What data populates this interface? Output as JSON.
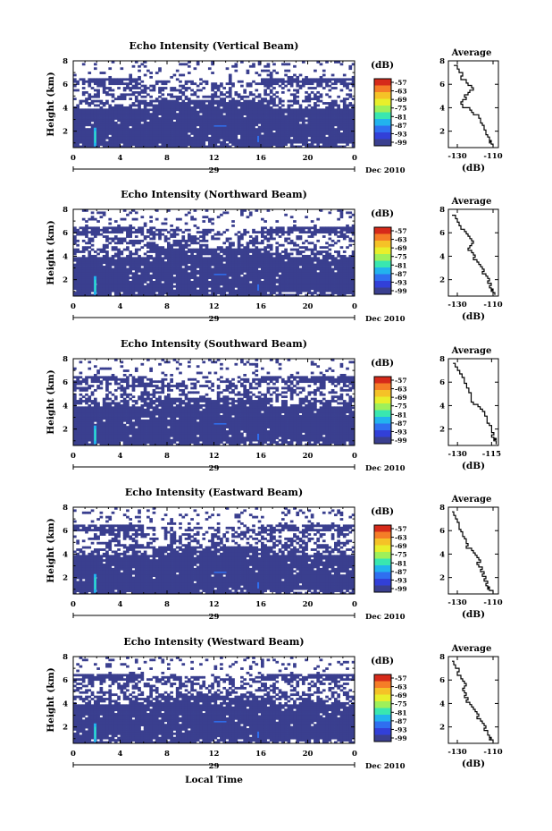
{
  "colorbar": {
    "unit_label": "(dB)",
    "ticks": [
      "-57",
      "-63",
      "-69",
      "-75",
      "-81",
      "-87",
      "-93",
      "-99"
    ],
    "colors": [
      "#d62a1a",
      "#f57d27",
      "#f5c227",
      "#e8ef2b",
      "#9ef05a",
      "#39e7b0",
      "#22b3ee",
      "#2f6ff0",
      "#3240d8",
      "#3a3f8f"
    ]
  },
  "shared": {
    "xlabel": "Local Time",
    "date_label": "29",
    "month_label": "Dec 2010",
    "ylabel": "Height (km)",
    "avg_xlabel": "(dB)",
    "avg_title": "Average",
    "bg_color": "#3a3f8f"
  },
  "chart_data": [
    {
      "type": "heatmap",
      "title": "Echo Intensity (Vertical Beam)",
      "x_ticks": [
        "0",
        "4",
        "8",
        "12",
        "16",
        "20",
        "0"
      ],
      "xlim": [
        0,
        24
      ],
      "y_ticks": [
        "8",
        "6",
        "4",
        "2"
      ],
      "ylim": [
        0.6,
        8.0
      ],
      "avg": {
        "title": "Average",
        "x_ticks": [
          "-130",
          "-110"
        ],
        "xlim": [
          -135,
          -107
        ],
        "y_ticks": [
          "8",
          "6",
          "4",
          "2"
        ],
        "ylim": [
          0.6,
          8.0
        ],
        "x": [
          -132,
          -130,
          -129,
          -127,
          -128,
          -125,
          -124,
          -122,
          -121,
          -123,
          -124,
          -126,
          -125,
          -127,
          -128,
          -127,
          -123,
          -122,
          -121,
          -118,
          -118,
          -117,
          -117,
          -116,
          -115,
          -115,
          -114,
          -114,
          -113,
          -112,
          -112,
          -111,
          -112,
          -111,
          -110
        ],
        "y": [
          7.6,
          7.3,
          7.0,
          6.7,
          6.4,
          6.1,
          5.9,
          5.7,
          5.5,
          5.3,
          5.1,
          4.9,
          4.7,
          4.5,
          4.3,
          4.0,
          3.8,
          3.6,
          3.4,
          3.3,
          3.1,
          2.9,
          2.7,
          2.5,
          2.3,
          2.1,
          1.9,
          1.7,
          1.5,
          1.3,
          1.2,
          1.1,
          1.0,
          0.9,
          0.7
        ]
      }
    },
    {
      "type": "heatmap",
      "title": "Echo Intensity (Northward Beam)",
      "x_ticks": [
        "0",
        "4",
        "8",
        "12",
        "16",
        "20",
        "0"
      ],
      "xlim": [
        0,
        24
      ],
      "y_ticks": [
        "8",
        "6",
        "4",
        "2"
      ],
      "ylim": [
        0.6,
        8.0
      ],
      "avg": {
        "title": "Average",
        "x_ticks": [
          "-130",
          "-110"
        ],
        "xlim": [
          -135,
          -107
        ],
        "y_ticks": [
          "8",
          "6",
          "4",
          "2"
        ],
        "ylim": [
          0.6,
          8.0
        ],
        "x": [
          -133,
          -131,
          -130,
          -129,
          -128,
          -126,
          -125,
          -124,
          -123,
          -122,
          -121,
          -122,
          -123,
          -124,
          -122,
          -121,
          -120,
          -121,
          -119,
          -118,
          -117,
          -116,
          -115,
          -116,
          -114,
          -113,
          -112,
          -113,
          -111,
          -112,
          -111,
          -110,
          -111,
          -110,
          -109
        ],
        "y": [
          7.5,
          7.2,
          6.9,
          6.6,
          6.3,
          6.1,
          5.9,
          5.7,
          5.5,
          5.3,
          5.1,
          4.9,
          4.7,
          4.5,
          4.3,
          4.1,
          3.9,
          3.7,
          3.5,
          3.3,
          3.1,
          2.9,
          2.7,
          2.5,
          2.3,
          2.1,
          1.9,
          1.7,
          1.5,
          1.3,
          1.2,
          1.1,
          1.0,
          0.9,
          0.7
        ]
      }
    },
    {
      "type": "heatmap",
      "title": "Echo Intensity (Southward Beam)",
      "x_ticks": [
        "0",
        "4",
        "8",
        "12",
        "16",
        "20",
        "0"
      ],
      "xlim": [
        0,
        24
      ],
      "y_ticks": [
        "8",
        "6",
        "4",
        "2"
      ],
      "ylim": [
        0.6,
        8.0
      ],
      "avg": {
        "title": "Average",
        "x_ticks": [
          "-130",
          "-115"
        ],
        "xlim": [
          -134,
          -112
        ],
        "y_ticks": [
          "8",
          "6",
          "4",
          "2"
        ],
        "ylim": [
          0.6,
          8.0
        ],
        "x": [
          -132,
          -131,
          -130,
          -129,
          -128,
          -127,
          -127,
          -126,
          -126,
          -125,
          -125,
          -124,
          -124,
          -124,
          -124,
          -123,
          -121,
          -120,
          -119,
          -118,
          -118,
          -117,
          -117,
          -117,
          -116,
          -115,
          -115,
          -115,
          -114,
          -115,
          -114,
          -113,
          -114,
          -113,
          -113
        ],
        "y": [
          7.6,
          7.3,
          7.0,
          6.7,
          6.4,
          6.1,
          5.9,
          5.7,
          5.5,
          5.3,
          5.1,
          4.9,
          4.7,
          4.5,
          4.3,
          4.1,
          3.9,
          3.7,
          3.5,
          3.3,
          3.1,
          2.9,
          2.7,
          2.5,
          2.3,
          2.1,
          1.9,
          1.7,
          1.5,
          1.3,
          1.2,
          1.1,
          1.0,
          0.9,
          0.7
        ]
      }
    },
    {
      "type": "heatmap",
      "title": "Echo Intensity (Eastward Beam)",
      "x_ticks": [
        "0",
        "4",
        "8",
        "12",
        "16",
        "20",
        "0"
      ],
      "xlim": [
        0,
        24
      ],
      "y_ticks": [
        "8",
        "6",
        "4",
        "2"
      ],
      "ylim": [
        0.6,
        8.0
      ],
      "avg": {
        "title": "Average",
        "x_ticks": [
          "-130",
          "-110"
        ],
        "xlim": [
          -135,
          -107
        ],
        "y_ticks": [
          "8",
          "6",
          "4",
          "2"
        ],
        "ylim": [
          0.6,
          8.0
        ],
        "x": [
          -133,
          -132,
          -131,
          -130,
          -129,
          -129,
          -128,
          -127,
          -127,
          -126,
          -125,
          -125,
          -124,
          -125,
          -122,
          -121,
          -120,
          -119,
          -118,
          -117,
          -119,
          -118,
          -116,
          -117,
          -115,
          -116,
          -114,
          -115,
          -113,
          -114,
          -113,
          -112,
          -113,
          -112,
          -110
        ],
        "y": [
          7.6,
          7.3,
          7.0,
          6.7,
          6.4,
          6.1,
          5.9,
          5.7,
          5.5,
          5.3,
          5.1,
          4.9,
          4.7,
          4.5,
          4.3,
          4.1,
          3.9,
          3.7,
          3.5,
          3.3,
          3.1,
          2.9,
          2.7,
          2.5,
          2.3,
          2.1,
          1.9,
          1.7,
          1.5,
          1.3,
          1.2,
          1.1,
          1.0,
          0.9,
          0.7
        ]
      }
    },
    {
      "type": "heatmap",
      "title": "Echo Intensity (Westward Beam)",
      "x_ticks": [
        "0",
        "4",
        "8",
        "12",
        "16",
        "20",
        "0"
      ],
      "xlim": [
        0,
        24
      ],
      "y_ticks": [
        "8",
        "6",
        "4",
        "2"
      ],
      "ylim": [
        0.6,
        8.0
      ],
      "avg": {
        "title": "Average",
        "x_ticks": [
          "-130",
          "-110"
        ],
        "xlim": [
          -135,
          -107
        ],
        "y_ticks": [
          "8",
          "6",
          "4",
          "2"
        ],
        "ylim": [
          0.6,
          8.0
        ],
        "x": [
          -133,
          -132,
          -131,
          -129,
          -130,
          -128,
          -127,
          -126,
          -125,
          -126,
          -127,
          -126,
          -125,
          -126,
          -124,
          -125,
          -123,
          -122,
          -121,
          -120,
          -119,
          -118,
          -119,
          -117,
          -116,
          -115,
          -114,
          -115,
          -113,
          -113,
          -112,
          -112,
          -111,
          -112,
          -110
        ],
        "y": [
          7.6,
          7.3,
          7.0,
          6.7,
          6.4,
          6.1,
          5.9,
          5.7,
          5.5,
          5.3,
          5.1,
          4.9,
          4.7,
          4.5,
          4.3,
          4.1,
          3.9,
          3.7,
          3.5,
          3.3,
          3.1,
          2.9,
          2.7,
          2.5,
          2.3,
          2.1,
          1.9,
          1.7,
          1.5,
          1.3,
          1.2,
          1.1,
          1.0,
          0.9,
          0.7
        ]
      }
    }
  ]
}
